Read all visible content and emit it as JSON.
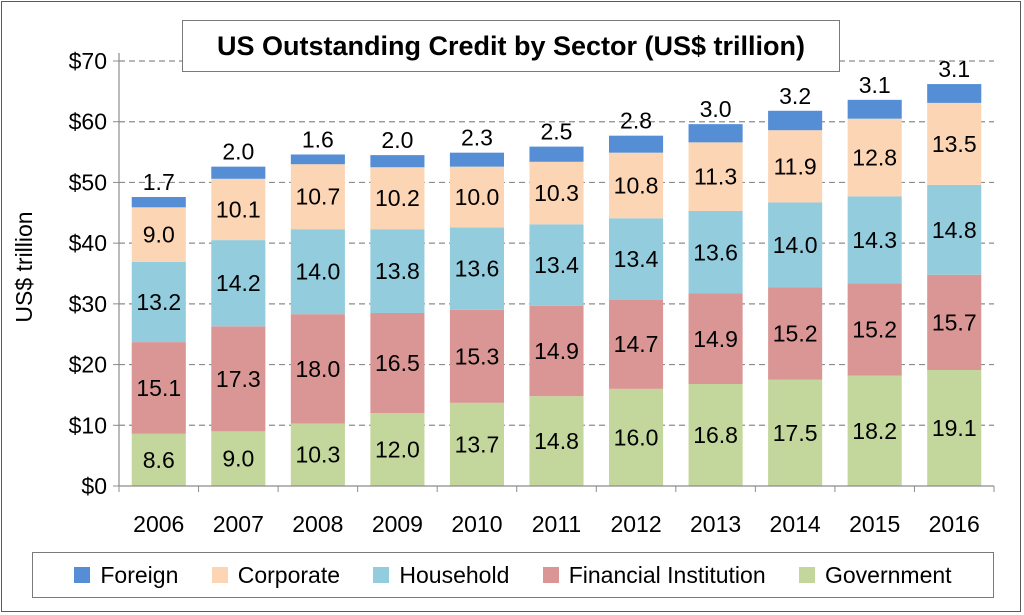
{
  "chart_data": {
    "type": "bar",
    "stacked": true,
    "title": "US Outstanding Credit by Sector (US$ trillion)",
    "ylabel": "US$ trillion",
    "xlabel": "",
    "ylim": [
      0,
      70
    ],
    "yticks": [
      "$0",
      "$10",
      "$20",
      "$30",
      "$40",
      "$50",
      "$60",
      "$70"
    ],
    "grid": true,
    "legend_position": "bottom",
    "categories": [
      "2006",
      "2007",
      "2008",
      "2009",
      "2010",
      "2011",
      "2012",
      "2013",
      "2014",
      "2015",
      "2016"
    ],
    "series": [
      {
        "name": "Government",
        "color": "#c3d69b",
        "values": [
          8.6,
          9.0,
          10.3,
          12.0,
          13.7,
          14.8,
          16.0,
          16.8,
          17.5,
          18.2,
          19.1
        ],
        "labels": [
          "8.6",
          "9.0",
          "10.3",
          "12.0",
          "13.7",
          "14.8",
          "16.0",
          "16.8",
          "17.5",
          "18.2",
          "19.1"
        ]
      },
      {
        "name": "Financial Institution",
        "color": "#d99694",
        "values": [
          15.1,
          17.3,
          18.0,
          16.5,
          15.3,
          14.9,
          14.7,
          14.9,
          15.2,
          15.2,
          15.7
        ],
        "labels": [
          "15.1",
          "17.3",
          "18.0",
          "16.5",
          "15.3",
          "14.9",
          "14.7",
          "14.9",
          "15.2",
          "15.2",
          "15.7"
        ]
      },
      {
        "name": "Household",
        "color": "#93cddd",
        "values": [
          13.2,
          14.2,
          14.0,
          13.8,
          13.6,
          13.4,
          13.4,
          13.6,
          14.0,
          14.3,
          14.8
        ],
        "labels": [
          "13.2",
          "14.2",
          "14.0",
          "13.8",
          "13.6",
          "13.4",
          "13.4",
          "13.6",
          "14.0",
          "14.3",
          "14.8"
        ]
      },
      {
        "name": "Corporate",
        "color": "#fcd5b5",
        "values": [
          9.0,
          10.1,
          10.7,
          10.2,
          10.0,
          10.3,
          10.8,
          11.3,
          11.9,
          12.8,
          13.5
        ],
        "labels": [
          "9.0",
          "10.1",
          "10.7",
          "10.2",
          "10.0",
          "10.3",
          "10.8",
          "11.3",
          "11.9",
          "12.8",
          "13.5"
        ]
      },
      {
        "name": "Foreign",
        "color": "#558ed5",
        "values": [
          1.7,
          2.0,
          1.6,
          2.0,
          2.3,
          2.5,
          2.8,
          3.0,
          3.2,
          3.1,
          3.1
        ],
        "labels": [
          "1.7",
          "2.0",
          "1.6",
          "2.0",
          "2.3",
          "2.5",
          "2.8",
          "3.0",
          "3.2",
          "3.1",
          "3.1"
        ]
      }
    ],
    "legend_order": [
      "Foreign",
      "Corporate",
      "Household",
      "Financial Institution",
      "Government"
    ]
  }
}
